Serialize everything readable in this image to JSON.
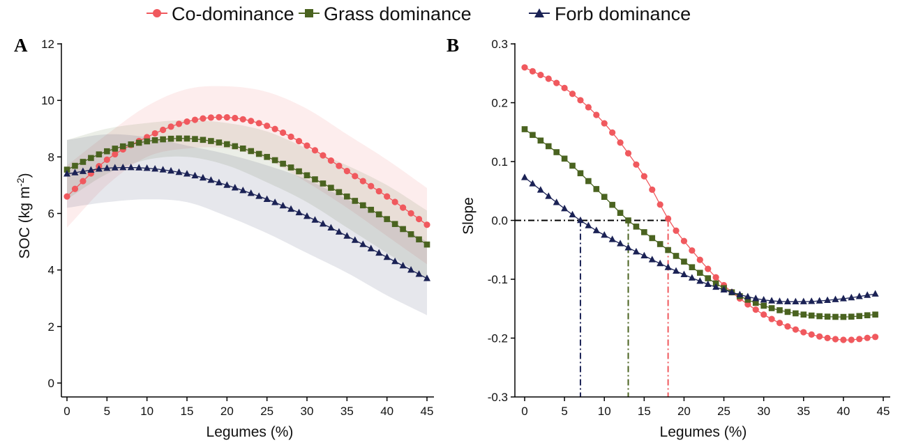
{
  "legend": {
    "items": [
      {
        "label": "Co-dominance",
        "color": "#F0595E",
        "marker": "circle"
      },
      {
        "label": "Grass dominance",
        "color": "#4A6320",
        "marker": "square"
      },
      {
        "label": "Forb dominance",
        "color": "#1B2255",
        "marker": "triangle"
      }
    ]
  },
  "chart_data": [
    {
      "panel": "A",
      "type": "line",
      "xlabel": "Legumes (%)",
      "ylabel": "SOC (kg m-2)",
      "ylabel_main": "SOC (kg m",
      "ylabel_sup": "-2",
      "ylabel_close": ")",
      "xlim": [
        0,
        45
      ],
      "ylim": [
        0,
        12
      ],
      "xticks": [
        0,
        5,
        10,
        15,
        20,
        25,
        30,
        35,
        40,
        45
      ],
      "yticks": [
        0,
        2,
        4,
        6,
        8,
        10,
        12
      ],
      "grid": false,
      "confidence_bands": true,
      "series": [
        {
          "name": "Co-dominance",
          "color": "#F0595E",
          "marker": "circle",
          "x": [
            0,
            5,
            10,
            15,
            20,
            25,
            30,
            35,
            40,
            45
          ],
          "y": [
            6.6,
            7.9,
            8.7,
            9.25,
            9.4,
            9.1,
            8.4,
            7.5,
            6.6,
            5.6
          ],
          "lo": [
            5.5,
            7.0,
            8.0,
            8.3,
            8.3,
            7.9,
            7.1,
            6.2,
            5.2,
            4.2
          ],
          "hi": [
            7.7,
            8.8,
            9.8,
            10.4,
            10.5,
            10.3,
            9.7,
            8.8,
            7.9,
            6.9
          ]
        },
        {
          "name": "Grass dominance",
          "color": "#4A6320",
          "marker": "square",
          "x": [
            0,
            5,
            10,
            15,
            20,
            25,
            30,
            35,
            40,
            45
          ],
          "y": [
            7.55,
            8.2,
            8.55,
            8.65,
            8.45,
            8.0,
            7.35,
            6.6,
            5.8,
            4.9
          ],
          "lo": [
            6.5,
            7.4,
            7.9,
            8.0,
            7.7,
            7.1,
            6.4,
            5.5,
            4.6,
            3.7
          ],
          "hi": [
            8.6,
            9.0,
            9.2,
            9.3,
            9.2,
            8.9,
            8.3,
            7.7,
            7.0,
            6.1
          ]
        },
        {
          "name": "Forb dominance",
          "color": "#1B2255",
          "marker": "triangle",
          "x": [
            0,
            5,
            10,
            15,
            20,
            25,
            30,
            35,
            40,
            45
          ],
          "y": [
            7.4,
            7.6,
            7.6,
            7.4,
            7.0,
            6.5,
            5.9,
            5.2,
            4.45,
            3.7
          ],
          "lo": [
            6.2,
            6.4,
            6.5,
            6.4,
            5.9,
            5.3,
            4.6,
            3.9,
            3.1,
            2.4
          ],
          "hi": [
            8.6,
            8.8,
            8.7,
            8.4,
            8.1,
            7.7,
            7.2,
            6.5,
            5.8,
            5.0
          ]
        }
      ]
    },
    {
      "panel": "B",
      "type": "line",
      "xlabel": "Legumes (%)",
      "ylabel": "Slope",
      "xlim": [
        0,
        45
      ],
      "ylim": [
        -0.3,
        0.3
      ],
      "xticks": [
        0,
        5,
        10,
        15,
        20,
        25,
        30,
        35,
        40,
        45
      ],
      "yticks": [
        -0.3,
        -0.2,
        -0.1,
        0.0,
        0.1,
        0.2,
        0.3
      ],
      "ytick_labels": [
        "-0.3",
        "-0.2",
        "-0.1",
        "0.0",
        "0.1",
        "0.2",
        "0.3"
      ],
      "grid": false,
      "zero_crossings": [
        {
          "series": "Forb dominance",
          "x": 7,
          "color": "#1B2255"
        },
        {
          "series": "Grass dominance",
          "x": 13,
          "color": "#4A6320"
        },
        {
          "series": "Co-dominance",
          "x": 18,
          "color": "#F0595E"
        }
      ],
      "series": [
        {
          "name": "Co-dominance",
          "color": "#F0595E",
          "marker": "circle",
          "x": [
            0,
            5,
            10,
            15,
            18,
            20,
            25,
            30,
            35,
            40,
            44
          ],
          "y": [
            0.26,
            0.225,
            0.165,
            0.075,
            0.003,
            -0.035,
            -0.11,
            -0.16,
            -0.19,
            -0.203,
            -0.198
          ]
        },
        {
          "name": "Grass dominance",
          "color": "#4A6320",
          "marker": "square",
          "x": [
            0,
            5,
            10,
            13,
            15,
            20,
            25,
            30,
            35,
            40,
            44
          ],
          "y": [
            0.155,
            0.105,
            0.04,
            0.0,
            -0.02,
            -0.07,
            -0.115,
            -0.145,
            -0.16,
            -0.164,
            -0.16
          ]
        },
        {
          "name": "Forb dominance",
          "color": "#1B2255",
          "marker": "triangle",
          "x": [
            0,
            5,
            7,
            10,
            15,
            20,
            25,
            30,
            35,
            40,
            44
          ],
          "y": [
            0.073,
            0.02,
            0.0,
            -0.025,
            -0.06,
            -0.092,
            -0.118,
            -0.135,
            -0.138,
            -0.133,
            -0.125
          ]
        }
      ]
    }
  ]
}
